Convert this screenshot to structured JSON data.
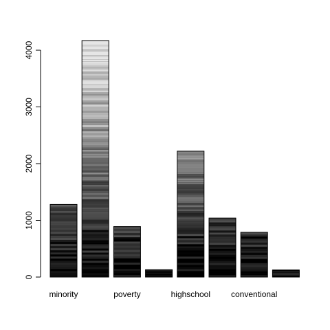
{
  "chart_data": {
    "type": "bar",
    "categories": [
      "minority",
      "",
      "poverty",
      "",
      "highschool",
      "",
      "conventional",
      ""
    ],
    "values": [
      1280,
      4170,
      890,
      130,
      2220,
      1040,
      790,
      125
    ],
    "ylim": [
      0,
      4170
    ],
    "yticks": [
      0,
      1000,
      2000,
      3000,
      4000
    ],
    "ytick_labels": [
      "0",
      "1000",
      "2000",
      "3000",
      "4000"
    ],
    "grid": false,
    "legend": "none",
    "xlabel": "",
    "ylabel": "",
    "title": "",
    "colors": {
      "fill_gradient": [
        "#000000",
        "#e6e6e6"
      ],
      "outline": "#000000"
    }
  }
}
